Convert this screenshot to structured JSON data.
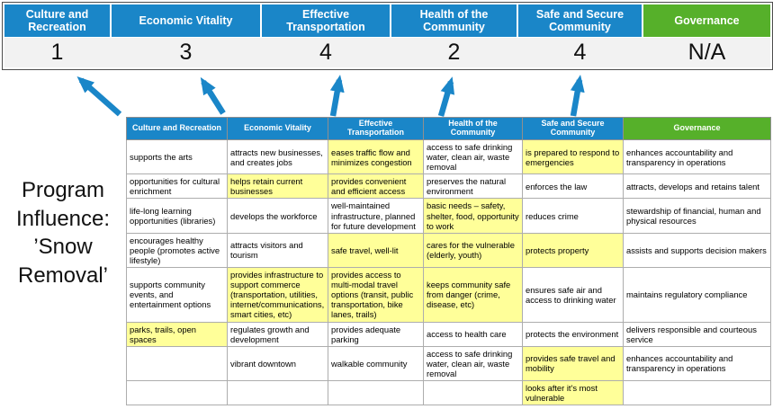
{
  "title": {
    "lines": [
      "Program",
      "Influence:",
      "’Snow",
      "Removal’"
    ]
  },
  "colors": {
    "blue": "#1a86c8",
    "green": "#56b02a",
    "highlight": "#ffff99",
    "score_band": "#f2f2f2"
  },
  "banner": {
    "columns": [
      {
        "label": "Culture and Recreation",
        "score": "1",
        "color": "blue"
      },
      {
        "label": "Economic Vitality",
        "score": "3",
        "color": "blue"
      },
      {
        "label": "Effective Transportation",
        "score": "4",
        "color": "blue"
      },
      {
        "label": "Health of the Community",
        "score": "2",
        "color": "blue"
      },
      {
        "label": "Safe and Secure Community",
        "score": "4",
        "color": "blue"
      },
      {
        "label": "Governance",
        "score": "N/A",
        "color": "green"
      }
    ]
  },
  "matrix": {
    "headers": [
      {
        "label": "Culture and Recreation",
        "color": "blue"
      },
      {
        "label": "Economic Vitality",
        "color": "blue"
      },
      {
        "label": "Effective Transportation",
        "color": "blue"
      },
      {
        "label": "Health of the Community",
        "color": "blue"
      },
      {
        "label": "Safe and Secure Community",
        "color": "blue"
      },
      {
        "label": "Governance",
        "color": "green"
      }
    ],
    "rows": [
      [
        {
          "text": "supports the arts",
          "hl": false
        },
        {
          "text": "attracts new businesses, and creates jobs",
          "hl": false
        },
        {
          "text": "eases traffic flow and minimizes congestion",
          "hl": true
        },
        {
          "text": "access to safe drinking water, clean air, waste removal",
          "hl": false
        },
        {
          "text": "is prepared to respond to emergencies",
          "hl": true
        },
        {
          "text": "enhances accountability and transparency in operations",
          "hl": false
        }
      ],
      [
        {
          "text": "opportunities for cultural enrichment",
          "hl": false
        },
        {
          "text": "helps retain current businesses",
          "hl": true
        },
        {
          "text": "provides convenient and efficient access",
          "hl": true
        },
        {
          "text": "preserves the natural environment",
          "hl": false
        },
        {
          "text": "enforces the law",
          "hl": false
        },
        {
          "text": "attracts, develops and retains talent",
          "hl": false
        }
      ],
      [
        {
          "text": "life-long learning opportunities (libraries)",
          "hl": false
        },
        {
          "text": "develops the workforce",
          "hl": false
        },
        {
          "text": "well-maintained infrastructure, planned for future development",
          "hl": false
        },
        {
          "text": "basic needs – safety, shelter, food, opportunity to work",
          "hl": true
        },
        {
          "text": "reduces crime",
          "hl": false
        },
        {
          "text": "stewardship of financial, human and physical resources",
          "hl": false
        }
      ],
      [
        {
          "text": "encourages healthy people (promotes active lifestyle)",
          "hl": false
        },
        {
          "text": "attracts visitors and tourism",
          "hl": false
        },
        {
          "text": "safe travel, well-lit",
          "hl": true
        },
        {
          "text": "cares for the vulnerable (elderly, youth)",
          "hl": true
        },
        {
          "text": "protects property",
          "hl": true
        },
        {
          "text": "assists and supports decision makers",
          "hl": false
        }
      ],
      [
        {
          "text": "supports community events, and entertainment options",
          "hl": false
        },
        {
          "text": "provides infrastructure to support commerce (transportation, utilities, internet/communications, smart cities, etc)",
          "hl": true
        },
        {
          "text": "provides access to multi-modal travel options (transit, public transportation, bike lanes, trails)",
          "hl": true
        },
        {
          "text": "keeps community safe from danger (crime, disease, etc)",
          "hl": true
        },
        {
          "text": "ensures safe air and access to drinking water",
          "hl": false
        },
        {
          "text": "maintains regulatory compliance",
          "hl": false
        }
      ],
      [
        {
          "text": "parks, trails, open spaces",
          "hl": true
        },
        {
          "text": "regulates growth and development",
          "hl": false
        },
        {
          "text": "provides adequate parking",
          "hl": false
        },
        {
          "text": "access to health care",
          "hl": false
        },
        {
          "text": "protects the environment",
          "hl": false
        },
        {
          "text": "delivers responsible and courteous service",
          "hl": false
        }
      ],
      [
        {
          "text": "",
          "hl": false
        },
        {
          "text": "vibrant downtown",
          "hl": false
        },
        {
          "text": "walkable community",
          "hl": false
        },
        {
          "text": "access to safe drinking water, clean air, waste removal",
          "hl": false
        },
        {
          "text": "provides safe travel and mobility",
          "hl": true
        },
        {
          "text": "enhances accountability and transparency in operations",
          "hl": false
        }
      ],
      [
        {
          "text": "",
          "hl": false
        },
        {
          "text": "",
          "hl": false
        },
        {
          "text": "",
          "hl": false
        },
        {
          "text": "",
          "hl": false
        },
        {
          "text": "looks after it's most vulnerable",
          "hl": true
        },
        {
          "text": "",
          "hl": false
        }
      ]
    ]
  }
}
